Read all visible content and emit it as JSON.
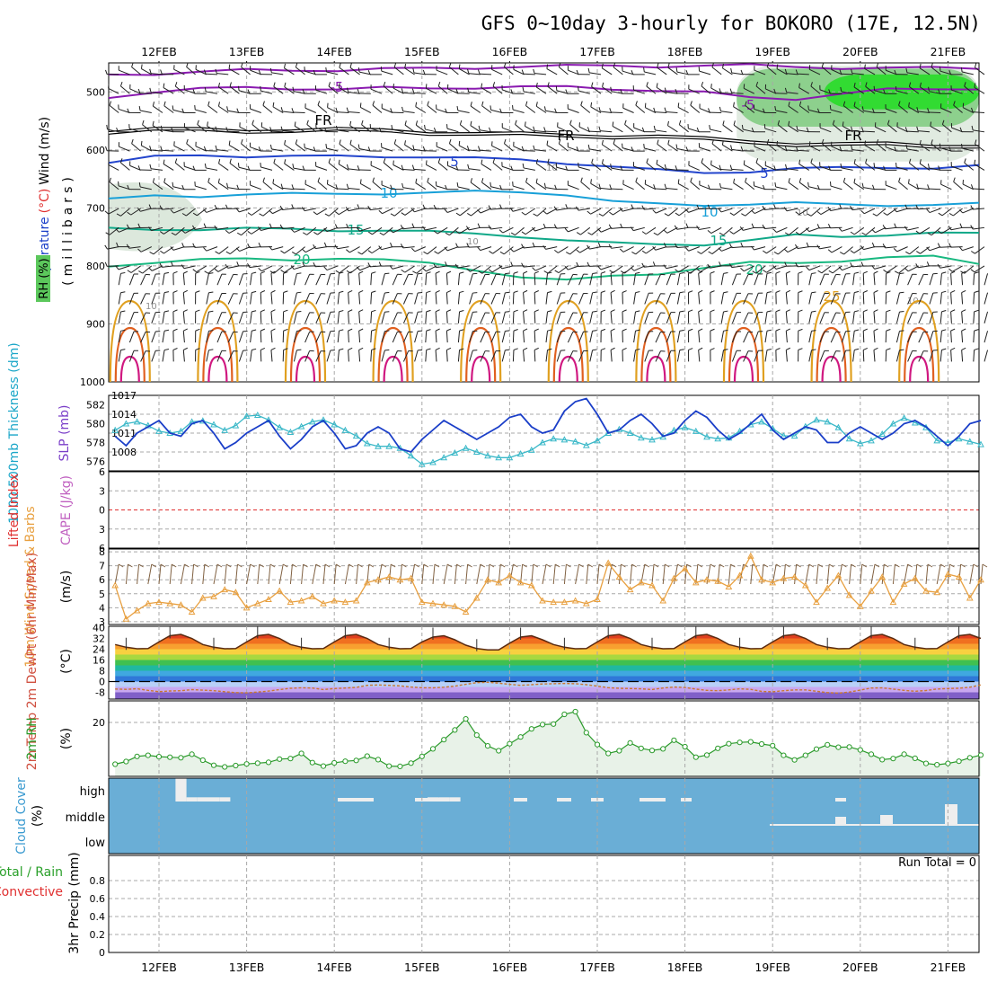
{
  "title": "GFS 0~10day 3-hourly for BOKORO (17E, 12.5N)",
  "dates": [
    "12FEB",
    "13FEB",
    "14FEB",
    "15FEB",
    "16FEB",
    "17FEB",
    "18FEB",
    "19FEB",
    "20FEB",
    "21FEB"
  ],
  "colors": {
    "bg": "#ffffff",
    "grid": "#a8a8a8",
    "wind_barb": "#202020",
    "temp_neg": "#8a1ab0",
    "temp_fr": "#000000",
    "temp_5": "#2244cc",
    "temp_10": "#18a0d8",
    "temp_15": "#10a888",
    "temp_20": "#18b880",
    "temp_25": "#e0a020",
    "temp_30": "#e06020",
    "temp_35": "#d01880",
    "rh_fill": "#5cc85c",
    "thickness": "#3ab8c8",
    "slp": "#1a3ec8",
    "lifted_zero": "#e03030",
    "wind10m": "#e8a040",
    "rh2m_line": "#2a9a2a",
    "rh2m_fill": "#e8f2e8",
    "cloud_bg": "#6aaed6",
    "cloud_bar": "#eeeeee"
  },
  "chart_data": [
    {
      "name": "upper_air",
      "type": "heatmap",
      "ylabel_parts": [
        "Wind",
        "(m/s)",
        "Temperature",
        "(°C)"
      ],
      "ylabel_inner": "(millibars)",
      "rh_label": "RH (%)",
      "pressure_ticks": [
        500,
        600,
        700,
        800,
        900,
        1000
      ],
      "ylim": [
        450,
        1000
      ],
      "isotherm_labels": [
        "-5",
        "-5",
        "FR",
        "FR",
        "FR",
        "5",
        "5",
        "10",
        "10",
        "15",
        "15",
        "20",
        "20",
        "25",
        "10",
        "10",
        "10",
        "10",
        "10"
      ],
      "isotherms": [
        {
          "label": "-5",
          "t": -5,
          "p": [
            470,
            468,
            466,
            463,
            462,
            462,
            461,
            460,
            458,
            456,
            456,
            455,
            455,
            455,
            455,
            456,
            458,
            460,
            459,
            458
          ]
        },
        {
          "label": "-5",
          "t": -5,
          "p": [
            508,
            500,
            496,
            492,
            493,
            496,
            494,
            493,
            492,
            492,
            492,
            494,
            497,
            502,
            510,
            511,
            503,
            497,
            495,
            493
          ]
        },
        {
          "label": "FR",
          "t": 0,
          "p": [
            568,
            565,
            566,
            567,
            566,
            566,
            567,
            570,
            572,
            574,
            575,
            576,
            578,
            582,
            585,
            590,
            592,
            590,
            592,
            594
          ]
        },
        {
          "label": "5",
          "t": 5,
          "p": [
            622,
            613,
            609,
            610,
            611,
            612,
            611,
            611,
            615,
            618,
            622,
            628,
            636,
            640,
            636,
            632,
            632,
            630,
            630,
            628
          ]
        },
        {
          "label": "10",
          "t": 10,
          "p": [
            686,
            680,
            679,
            676,
            677,
            676,
            674,
            674,
            673,
            672,
            676,
            690,
            694,
            694,
            693,
            693,
            694,
            694,
            695,
            694
          ]
        },
        {
          "label": "15",
          "t": 15,
          "p": [
            737,
            737,
            736,
            736,
            738,
            738,
            738,
            742,
            745,
            748,
            756,
            762,
            762,
            762,
            757,
            748,
            748,
            746,
            745,
            744
          ]
        },
        {
          "label": "20",
          "t": 20,
          "p": [
            802,
            792,
            788,
            790,
            790,
            785,
            790,
            797,
            806,
            818,
            826,
            818,
            812,
            803,
            796,
            795,
            790,
            786,
            785,
            795
          ]
        }
      ],
      "rh_patches": [
        {
          "level": "60",
          "x0": "19FEB",
          "x1": "21FEB",
          "p0": 455,
          "p1": 620
        },
        {
          "level": "80",
          "x0": "19FEB",
          "x1": "21FEB",
          "p0": 460,
          "p1": 560
        },
        {
          "level": "90",
          "x0": "20FEB",
          "x1": "21FEB",
          "p0": 470,
          "p1": 530
        }
      ]
    },
    {
      "name": "thickness_slp",
      "type": "line",
      "ylabel_left": "1000-500mb Thickness (dm)",
      "ylabel_right": "SLP (mb)",
      "left_ticks": [
        "582",
        "580",
        "578",
        "576"
      ],
      "right_ticks": [
        "1017",
        "1014",
        "1011",
        "1008"
      ],
      "left_ylim": [
        575,
        583
      ],
      "right_ylim": [
        1005,
        1017
      ],
      "series": [
        {
          "name": "1000-500mb Thickness",
          "axis": "left",
          "values": [
            579.3,
            580.0,
            580.2,
            579.8,
            579.2,
            579.0,
            579.2,
            580.2,
            580.3,
            579.9,
            579.3,
            579.8,
            580.8,
            580.9,
            580.4,
            579.6,
            579.1,
            579.7,
            580.2,
            580.4,
            579.9,
            579.3,
            578.7,
            577.9,
            577.6,
            577.6,
            577.4,
            576.6,
            575.7,
            575.9,
            576.4,
            576.9,
            577.4,
            577.0,
            576.6,
            576.4,
            576.4,
            576.8,
            577.2,
            578.0,
            578.4,
            578.3,
            578.1,
            577.7,
            578.2,
            579.0,
            579.4,
            579.0,
            578.5,
            578.3,
            578.6,
            579.3,
            579.6,
            579.2,
            578.6,
            578.4,
            578.5,
            579.2,
            579.9,
            580.2,
            579.5,
            578.7,
            578.7,
            579.7,
            580.4,
            580.2,
            579.6,
            578.4,
            577.9,
            578.2,
            578.9,
            580.0,
            580.6,
            580.1,
            579.6,
            578.2,
            578.0,
            578.4,
            578.1,
            577.8
          ]
        },
        {
          "name": "SLP",
          "axis": "right",
          "values": [
            1010.5,
            1009,
            1011,
            1012,
            1013,
            1011,
            1010.5,
            1012.5,
            1013,
            1011,
            1008.5,
            1009.5,
            1011,
            1012,
            1013,
            1010.5,
            1008.5,
            1010,
            1012,
            1013,
            1011,
            1008.5,
            1009,
            1011,
            1012,
            1011,
            1008.5,
            1008,
            1010,
            1011.5,
            1013,
            1012,
            1011,
            1010,
            1011,
            1012,
            1013.5,
            1014,
            1012,
            1011,
            1011.5,
            1014.5,
            1016,
            1016.5,
            1014,
            1011,
            1011.5,
            1013,
            1014,
            1012.5,
            1010.5,
            1011,
            1013,
            1014.5,
            1013.5,
            1011.5,
            1010,
            1011,
            1012.5,
            1014,
            1011.5,
            1010,
            1011,
            1012,
            1011.5,
            1009.5,
            1009.5,
            1011,
            1012,
            1011,
            1010,
            1011,
            1012.5,
            1013,
            1012,
            1010.5,
            1009,
            1010.5,
            1012.5,
            1013
          ]
        }
      ]
    },
    {
      "name": "lifted_cape",
      "type": "line",
      "ylabel_left": "Lifted Index",
      "ylabel_right": "CAPE (J/kg)",
      "ticks": [
        "-6",
        "-3",
        "0",
        "3",
        "6"
      ],
      "ylim": [
        -6,
        6
      ],
      "series": [
        {
          "name": "Lifted Index",
          "values": []
        },
        {
          "name": "CAPE",
          "values": []
        }
      ]
    },
    {
      "name": "wind10m",
      "type": "line",
      "ylabel": "10m Wind Speed & Barbs",
      "unit": "(m/s)",
      "ticks": [
        "8",
        "7",
        "6",
        "5",
        "4",
        "3"
      ],
      "ylim": [
        2.8,
        8.2
      ],
      "series": [
        {
          "name": "10m Wind Speed",
          "values": [
            5.6,
            3.2,
            3.8,
            4.3,
            4.4,
            4.3,
            4.2,
            3.7,
            4.7,
            4.8,
            5.3,
            5.1,
            4.0,
            4.3,
            4.6,
            5.2,
            4.4,
            4.5,
            4.8,
            4.3,
            4.5,
            4.4,
            4.5,
            5.8,
            6.0,
            6.2,
            6.0,
            6.1,
            4.4,
            4.3,
            4.2,
            4.1,
            3.7,
            4.7,
            6.0,
            5.8,
            6.3,
            5.8,
            5.6,
            4.5,
            4.4,
            4.4,
            4.5,
            4.3,
            4.6,
            7.2,
            6.2,
            5.3,
            5.8,
            5.6,
            4.5,
            6.1,
            6.8,
            5.8,
            6.0,
            5.9,
            5.5,
            6.3,
            7.7,
            6.0,
            5.8,
            6.1,
            6.2,
            5.6,
            4.4,
            5.4,
            6.3,
            4.9,
            4.1,
            5.2,
            6.2,
            4.4,
            5.7,
            6.1,
            5.2,
            5.1,
            6.4,
            6.2,
            4.7,
            6.0
          ]
        }
      ]
    },
    {
      "name": "temp2m",
      "type": "area",
      "ylabel": "2m Temp 2m DewPt (6hr Min/Max)",
      "unit": "(°C)",
      "ticks": [
        "40",
        "32",
        "24",
        "16",
        "8",
        "0",
        "-8"
      ],
      "ylim": [
        -13,
        41
      ],
      "series": [
        {
          "name": "2m Temp",
          "values": [
            27.5,
            25.5,
            24.3,
            24.5,
            29.4,
            34,
            35,
            32,
            27.5,
            25.5,
            24.3,
            24.5,
            29.4,
            34,
            35,
            32,
            27.5,
            25.5,
            24.3,
            24.5,
            29.4,
            34,
            35,
            32,
            27.5,
            25.5,
            24.3,
            24.5,
            29.4,
            33,
            34,
            31,
            27,
            24.5,
            23.5,
            23.5,
            28.5,
            33,
            34,
            31,
            27.5,
            25.5,
            24.3,
            24.5,
            29.4,
            34,
            35,
            32,
            27.5,
            25.5,
            24.3,
            24.5,
            29.4,
            34,
            35,
            32,
            27.5,
            25.5,
            24.3,
            24.5,
            29.4,
            34,
            35,
            32,
            27.5,
            25.5,
            24.3,
            24.5,
            29.4,
            34,
            35,
            32,
            27.5,
            25.5,
            24.3,
            24.5,
            29.4,
            34,
            35,
            32
          ]
        },
        {
          "name": "2m DewPt",
          "values": [
            -5.5,
            -5.8,
            -5.3,
            -6.5,
            -7.5,
            -7,
            -6.8,
            -6,
            -6.4,
            -6.8,
            -7.5,
            -8.2,
            -8.4,
            -7.8,
            -7.1,
            -6,
            -5,
            -4.6,
            -4.8,
            -5.9,
            -5.2,
            -4.8,
            -4.3,
            -2.8,
            -2.5,
            -2.8,
            -3.2,
            -4.1,
            -4.6,
            -4.7,
            -4.2,
            -3.4,
            -2.1,
            -0.8,
            -0.5,
            -1.2,
            -2.1,
            -2.8,
            -2.3,
            -1.8,
            -1.6,
            -1.4,
            -1.6,
            -2.3,
            -3.4,
            -4.5,
            -5,
            -5.2,
            -5.4,
            -5.9,
            -4.8,
            -4.1,
            -4.4,
            -5.6,
            -6.5,
            -6.8,
            -6.2,
            -5.4,
            -5.8,
            -7.3,
            -7.6,
            -6.8,
            -6.2,
            -6.2,
            -7.2,
            -8.2,
            -8.6,
            -7.8,
            -6.3,
            -4.8,
            -4.7,
            -5.6,
            -6.5,
            -7.2,
            -6.7,
            -5.5,
            -5.2,
            -4.9,
            -4.2,
            -2.5
          ]
        }
      ]
    },
    {
      "name": "rh2m",
      "type": "area",
      "ylabel": "2m RH",
      "unit": "(%)",
      "ticks": [
        "20"
      ],
      "ylim": [
        0,
        28
      ],
      "series": [
        {
          "name": "2m RH",
          "values": [
            4.5,
            5.5,
            7.4,
            7.8,
            7.3,
            7.1,
            6.9,
            8.2,
            6.0,
            4.1,
            3.5,
            4.0,
            4.6,
            4.9,
            5.2,
            6.4,
            6.6,
            8.5,
            5.1,
            3.8,
            5.0,
            5.6,
            5.9,
            7.5,
            6.2,
            3.8,
            3.7,
            4.9,
            7.4,
            10.2,
            13.6,
            17.2,
            21.3,
            15.3,
            11.3,
            9.5,
            12.1,
            14.6,
            17.6,
            19.2,
            19.4,
            23.0,
            24.0,
            16.2,
            11.8,
            8.5,
            9.5,
            12.4,
            10.4,
            9.6,
            10.2,
            13.4,
            11.0,
            7.1,
            7.9,
            10.4,
            12.1,
            12.6,
            12.8,
            12.0,
            11.4,
            7.8,
            6.1,
            7.8,
            10.1,
            11.7,
            10.8,
            10.9,
            9.8,
            8.2,
            6.2,
            6.6,
            8.2,
            6.7,
            4.8,
            4.3,
            4.8,
            5.6,
            6.9,
            7.9
          ]
        }
      ]
    },
    {
      "name": "cloud_cover",
      "type": "bar",
      "ylabel": "Cloud Cover",
      "unit": "(%)",
      "levels": [
        "high",
        "middle",
        "low"
      ],
      "series": [
        {
          "name": "high",
          "values": [
            0,
            0,
            0,
            0,
            0,
            0,
            100,
            18,
            18,
            18,
            18,
            0,
            0,
            0,
            0,
            0,
            0,
            0,
            0,
            0,
            0,
            0,
            0,
            0,
            0,
            0,
            0,
            0,
            0,
            18,
            18,
            18,
            0,
            0,
            0,
            0,
            0,
            0,
            0,
            0,
            0,
            0,
            0,
            0,
            0,
            0,
            0,
            0,
            0,
            0,
            0,
            0,
            0,
            0,
            0,
            0,
            0,
            0,
            0,
            0,
            0,
            0,
            0,
            0,
            0,
            0,
            0,
            0,
            0,
            0,
            0,
            0,
            0,
            0,
            0,
            0,
            0,
            0,
            0,
            0
          ]
        },
        {
          "name": "middle",
          "values": [
            0,
            0,
            0,
            0,
            0,
            0,
            0,
            0,
            0,
            0,
            0,
            0,
            0,
            0,
            0,
            0,
            0,
            0,
            0,
            0,
            0,
            0,
            0,
            0,
            0,
            0,
            0,
            0,
            0,
            0,
            0,
            0,
            0,
            0,
            0,
            0,
            0,
            0,
            0,
            0,
            0,
            0,
            0,
            0,
            0,
            0,
            0,
            0,
            0,
            0,
            0,
            0,
            0,
            0,
            0,
            0,
            0,
            0,
            0,
            0,
            0,
            0,
            0,
            0,
            0,
            0,
            0,
            0,
            0,
            0,
            0,
            0,
            0,
            0,
            0,
            0,
            0,
            0,
            0,
            0
          ]
        }
      ]
    },
    {
      "name": "precip",
      "type": "bar",
      "ylabel": "3hr Precip (mm)",
      "legend_total": "Total / Rain",
      "legend_convective": "Convective",
      "run_total": "Run Total = 0",
      "ticks": [
        "0.8",
        "0.6",
        "0.4",
        "0.2",
        "0"
      ],
      "ylim": [
        0,
        1
      ],
      "series": [
        {
          "name": "Total / Rain",
          "values": []
        },
        {
          "name": "Convective",
          "values": []
        }
      ]
    }
  ]
}
